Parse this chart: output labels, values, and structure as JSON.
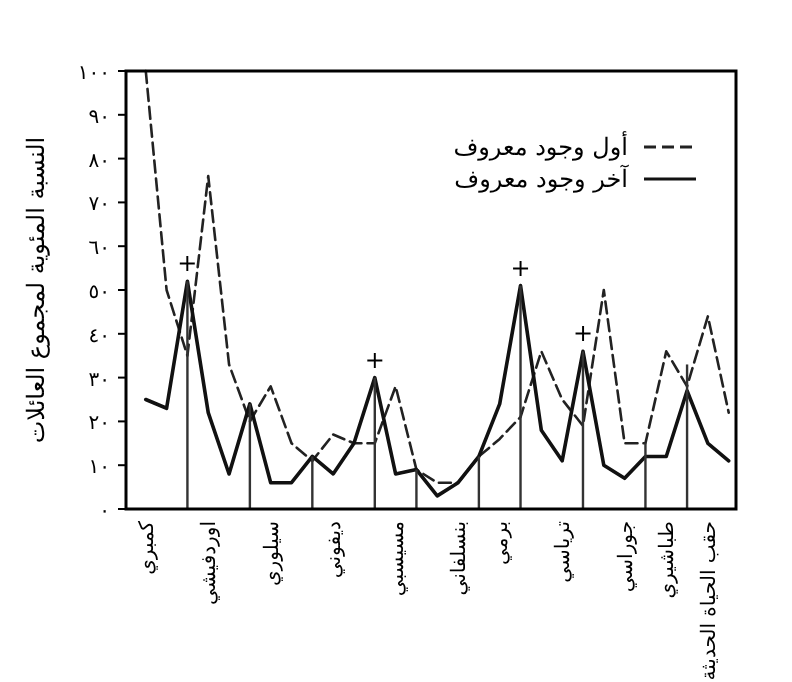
{
  "chart_data": {
    "type": "line",
    "ylabel": "النسبة المئوية لمجموع العائلات",
    "categories": [
      "كمبري",
      null,
      null,
      "اوردفيشي",
      null,
      null,
      "سيلوري",
      null,
      null,
      "ديفوني",
      null,
      null,
      "مسيسبي",
      null,
      null,
      "بنسلفاني",
      null,
      "برمي",
      null,
      null,
      "ترياسي",
      null,
      null,
      "جوراسي",
      null,
      "طباشيري",
      null,
      "حقب الحياة الحديثة",
      null
    ],
    "ylim": [
      0,
      100
    ],
    "yticks": [
      {
        "value": 0,
        "label": "٠"
      },
      {
        "value": 10,
        "label": "١٠"
      },
      {
        "value": 20,
        "label": "٢٠"
      },
      {
        "value": 30,
        "label": "٣٠"
      },
      {
        "value": 40,
        "label": "٤٠"
      },
      {
        "value": 50,
        "label": "٥٠"
      },
      {
        "value": 60,
        "label": "٦٠"
      },
      {
        "value": 70,
        "label": "٧٠"
      },
      {
        "value": 80,
        "label": "٨٠"
      },
      {
        "value": 90,
        "label": "٩٠"
      },
      {
        "value": 100,
        "label": "١٠٠"
      }
    ],
    "series": [
      {
        "name": "أول وجود معروف",
        "color": "#222222",
        "line_style": "dashed",
        "values": [
          100,
          50,
          35,
          76,
          33,
          20,
          28,
          15,
          11,
          17,
          15,
          15,
          28,
          9,
          6,
          6,
          12,
          16,
          21,
          36,
          25,
          19,
          50,
          15,
          15,
          36,
          28,
          44,
          22
        ]
      },
      {
        "name": "آخر وجود معروف",
        "color": "#111111",
        "line_style": "solid",
        "values": [
          25,
          23,
          52,
          22,
          8,
          24,
          6,
          6,
          12,
          8,
          15,
          30,
          8,
          9,
          3,
          6,
          12,
          24,
          51,
          18,
          11,
          36,
          10,
          7,
          12,
          12,
          27,
          15,
          11
        ]
      },
      {
        "type": "bar",
        "color": "#333333",
        "values": [
          null,
          null,
          52,
          null,
          null,
          24,
          null,
          null,
          12,
          null,
          null,
          30,
          null,
          9,
          null,
          null,
          12,
          null,
          51,
          null,
          null,
          36,
          null,
          null,
          15,
          null,
          33,
          null,
          null
        ],
        "value_labels": [
          null,
          null,
          "+",
          null,
          null,
          null,
          null,
          null,
          null,
          null,
          null,
          "+",
          null,
          null,
          null,
          null,
          null,
          null,
          "+",
          null,
          null,
          "+",
          null,
          null,
          null,
          null,
          null,
          null,
          null
        ]
      }
    ],
    "legend": "top right",
    "grid": false,
    "marker": "none"
  }
}
